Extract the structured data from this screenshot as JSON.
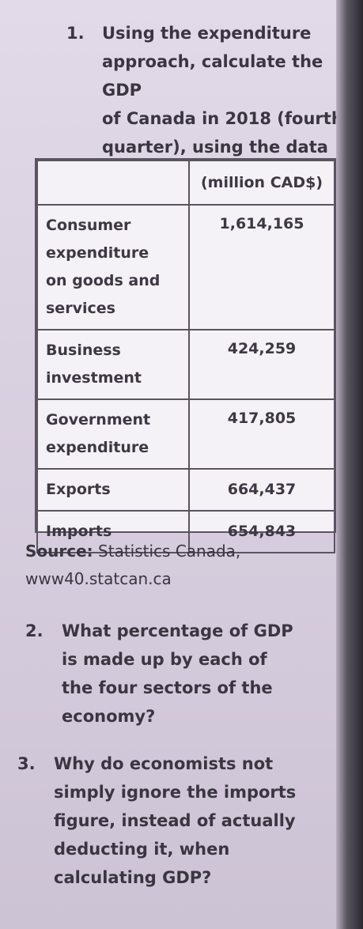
{
  "q1": {
    "number": "1.",
    "text": "Using the expenditure\napproach, calculate the GDP\nof Canada in 2018 (fourth\nquarter), using the data\nbelow."
  },
  "table": {
    "header_blank": "",
    "header_unit": "(million CAD$)",
    "rows": [
      {
        "label": "Consumer\nexpenditure\non goods and\nservices",
        "value": "1,614,165"
      },
      {
        "label": "Business\ninvestment",
        "value": "424,259"
      },
      {
        "label": "Government\nexpenditure",
        "value": "417,805"
      },
      {
        "label": "Exports",
        "value": "664,437"
      },
      {
        "label": "Imports",
        "value": "654,843"
      }
    ]
  },
  "source": {
    "label": "Source:",
    "text": " Statistics Canada,",
    "url": "www40.statcan.ca"
  },
  "q2": {
    "number": "2.",
    "text_before": "What percentage of GDP\nis made up by each of\nthe ",
    "text_bold": "four",
    "text_after": " sectors of the\neconomy?"
  },
  "q3": {
    "number": "3.",
    "text": "Why do economists not\nsimply ignore the imports\nfigure, instead of actually\ndeducting it, when\ncalculating GDP?"
  }
}
